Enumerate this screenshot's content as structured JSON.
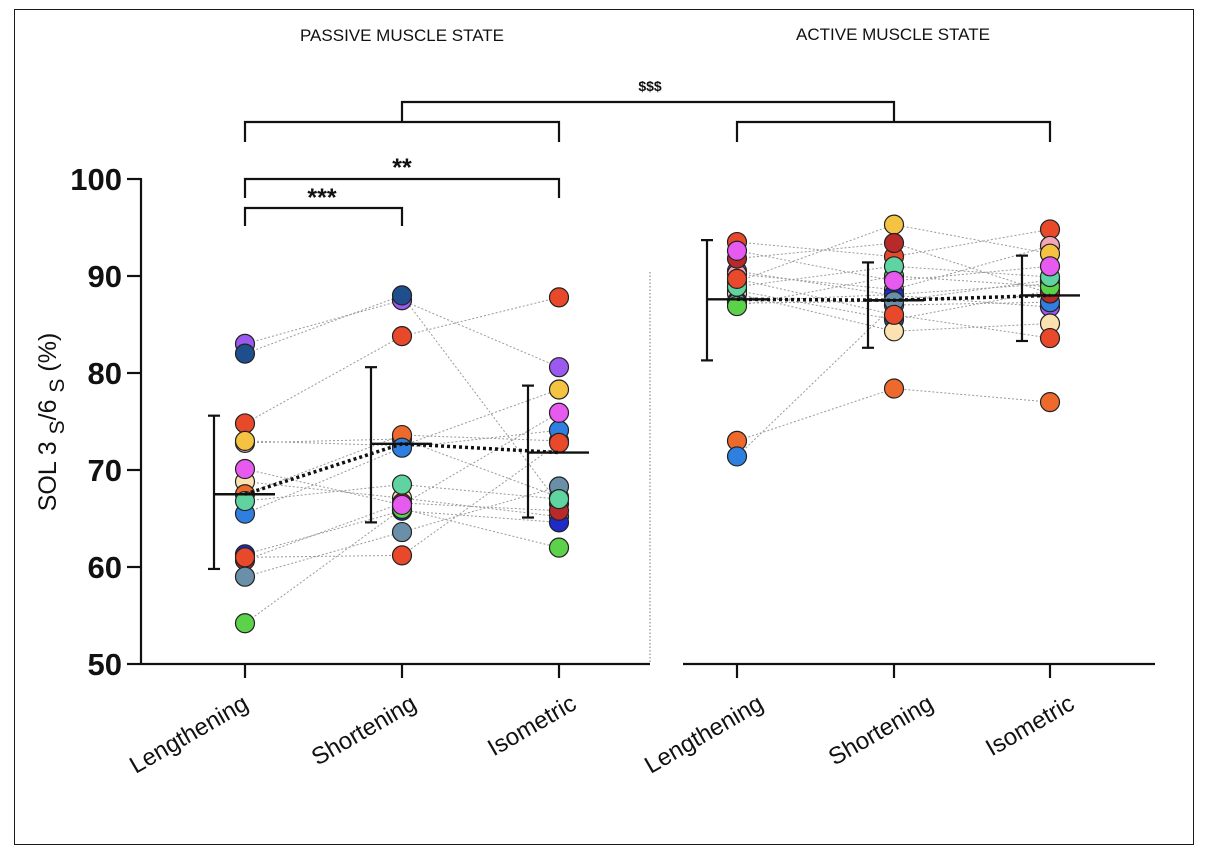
{
  "chart_data": {
    "type": "scatter",
    "ylabel": "SOL 3 S/6 S (%)",
    "ylabel_parts": {
      "prefix": "SOL 3 ",
      "sub1": "S",
      "mid": "/6 ",
      "sub2": "S",
      "suffix": " (%)"
    },
    "ylim": [
      50,
      100
    ],
    "yticks": [
      "50",
      "60",
      "70",
      "80",
      "90",
      "100"
    ],
    "panels": [
      {
        "title": "PASSIVE MUSCLE STATE"
      },
      {
        "title": "ACTIVE MUSCLE STATE"
      }
    ],
    "categories": [
      "Lengthening",
      "Shortening",
      "Isometric",
      "Lengthening",
      "Shortening",
      "Isometric"
    ],
    "significance": {
      "passive_len_short": "***",
      "passive_len_iso": "**",
      "state_effect": "$$$"
    },
    "summary": [
      {
        "mean": 67.5,
        "err_low": 59.8,
        "err_high": 75.6
      },
      {
        "mean": 72.7,
        "err_low": 64.6,
        "err_high": 80.6
      },
      {
        "mean": 71.8,
        "err_low": 65.1,
        "err_high": 78.7
      },
      {
        "mean": 87.6,
        "err_low": 81.3,
        "err_high": 93.7
      },
      {
        "mean": 87.5,
        "err_low": 82.6,
        "err_high": 91.4
      },
      {
        "mean": 88.0,
        "err_low": 83.3,
        "err_high": 92.1
      }
    ],
    "subjects": [
      {
        "color": "#9b59f0",
        "passive": [
          83.0,
          87.5,
          80.6
        ],
        "active": [
          90.5,
          88.0,
          86.8
        ]
      },
      {
        "color": "#1f4e8c",
        "passive": [
          82.0,
          88.0,
          66.5
        ],
        "active": [
          88.5,
          85.5,
          88.5
        ]
      },
      {
        "color": "#e8492a",
        "passive": [
          74.8,
          83.8,
          87.8
        ],
        "active": [
          93.5,
          92.0,
          94.8
        ]
      },
      {
        "color": "#f4a6b8",
        "passive": [
          72.8,
          73.2,
          67.2
        ],
        "active": [
          90.2,
          88.6,
          93.1
        ]
      },
      {
        "color": "#f5c342",
        "passive": [
          73.0,
          72.5,
          78.3
        ],
        "active": [
          89.4,
          95.3,
          92.3
        ]
      },
      {
        "color": "#fbe2b0",
        "passive": [
          68.8,
          67.1,
          65.2
        ],
        "active": [
          88.2,
          84.3,
          85.1
        ]
      },
      {
        "color": "#ee6a2c",
        "passive": [
          67.5,
          73.6,
          73.0
        ],
        "active": [
          73.0,
          78.4,
          77.0
        ]
      },
      {
        "color": "#2f7fe0",
        "passive": [
          65.5,
          72.3,
          74.1
        ],
        "active": [
          71.4,
          87.0,
          87.3
        ]
      },
      {
        "color": "#1e2bc7",
        "passive": [
          61.3,
          65.8,
          64.6
        ],
        "active": [
          87.4,
          88.1,
          89.2
        ]
      },
      {
        "color": "#b8292a",
        "passive": [
          60.7,
          66.6,
          65.8
        ],
        "active": [
          91.8,
          93.4,
          88.2
        ]
      },
      {
        "color": "#6a8fa8",
        "passive": [
          59.0,
          63.6,
          68.3
        ],
        "active": [
          87.2,
          87.4,
          89.6
        ]
      },
      {
        "color": "#5bd24a",
        "passive": [
          54.2,
          66.0,
          62.0
        ],
        "active": [
          86.9,
          90.0,
          88.9
        ]
      },
      {
        "color": "#5fd3a0",
        "passive": [
          66.8,
          68.5,
          67.0
        ],
        "active": [
          88.9,
          91.0,
          89.9
        ]
      },
      {
        "color": "#e65af0",
        "passive": [
          70.1,
          66.4,
          75.9
        ],
        "active": [
          92.6,
          89.5,
          91.0
        ]
      },
      {
        "color": "#e8492a",
        "passive": [
          61.0,
          61.2,
          72.8
        ],
        "active": [
          89.7,
          86.0,
          83.6
        ]
      }
    ]
  }
}
